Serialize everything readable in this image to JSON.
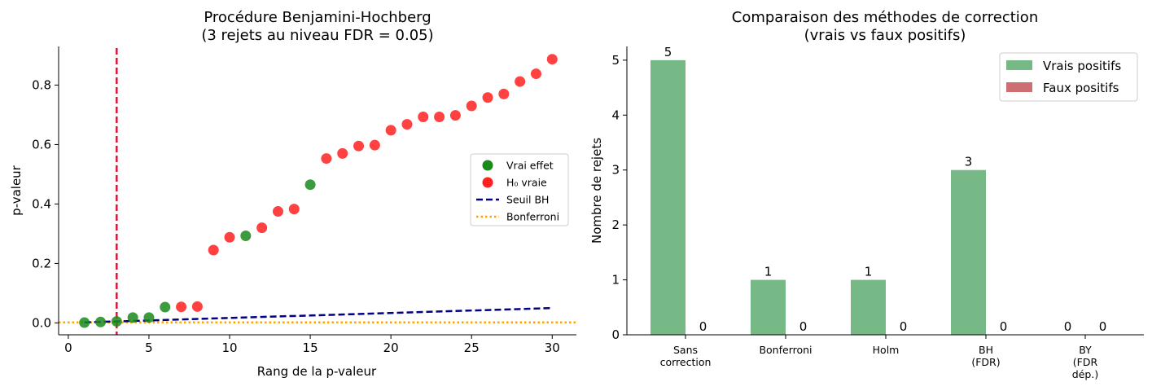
{
  "chart_data": [
    {
      "type": "scatter",
      "title_line1": "Procédure Benjamini-Hochberg",
      "title_line2": "(3 rejets au niveau FDR = 0.05)",
      "xlabel": "Rang de la p-valeur",
      "ylabel": "p-valeur",
      "xlim": [
        -0.6,
        31.5
      ],
      "ylim": [
        -0.04,
        0.93
      ],
      "xticks": [
        0,
        5,
        10,
        15,
        20,
        25,
        30
      ],
      "xtick_labels": [
        "0",
        "5",
        "10",
        "15",
        "20",
        "25",
        "30"
      ],
      "yticks": [
        0.0,
        0.2,
        0.4,
        0.6,
        0.8
      ],
      "ytick_labels": [
        "0.0",
        "0.2",
        "0.4",
        "0.6",
        "0.8"
      ],
      "points": [
        {
          "rank": 1,
          "p": 0.001,
          "group": "vrai"
        },
        {
          "rank": 2,
          "p": 0.003,
          "group": "vrai"
        },
        {
          "rank": 3,
          "p": 0.005,
          "group": "vrai"
        },
        {
          "rank": 4,
          "p": 0.018,
          "group": "vrai"
        },
        {
          "rank": 5,
          "p": 0.018,
          "group": "vrai"
        },
        {
          "rank": 6,
          "p": 0.053,
          "group": "vrai"
        },
        {
          "rank": 7,
          "p": 0.054,
          "group": "h0"
        },
        {
          "rank": 8,
          "p": 0.055,
          "group": "h0"
        },
        {
          "rank": 9,
          "p": 0.245,
          "group": "h0"
        },
        {
          "rank": 10,
          "p": 0.288,
          "group": "h0"
        },
        {
          "rank": 11,
          "p": 0.293,
          "group": "vrai"
        },
        {
          "rank": 12,
          "p": 0.32,
          "group": "h0"
        },
        {
          "rank": 13,
          "p": 0.375,
          "group": "h0"
        },
        {
          "rank": 14,
          "p": 0.383,
          "group": "h0"
        },
        {
          "rank": 15,
          "p": 0.465,
          "group": "vrai"
        },
        {
          "rank": 16,
          "p": 0.553,
          "group": "h0"
        },
        {
          "rank": 17,
          "p": 0.57,
          "group": "h0"
        },
        {
          "rank": 18,
          "p": 0.595,
          "group": "h0"
        },
        {
          "rank": 19,
          "p": 0.598,
          "group": "h0"
        },
        {
          "rank": 20,
          "p": 0.648,
          "group": "h0"
        },
        {
          "rank": 21,
          "p": 0.668,
          "group": "h0"
        },
        {
          "rank": 22,
          "p": 0.693,
          "group": "h0"
        },
        {
          "rank": 23,
          "p": 0.693,
          "group": "h0"
        },
        {
          "rank": 24,
          "p": 0.698,
          "group": "h0"
        },
        {
          "rank": 25,
          "p": 0.73,
          "group": "h0"
        },
        {
          "rank": 26,
          "p": 0.758,
          "group": "h0"
        },
        {
          "rank": 27,
          "p": 0.77,
          "group": "h0"
        },
        {
          "rank": 28,
          "p": 0.812,
          "group": "h0"
        },
        {
          "rank": 29,
          "p": 0.838,
          "group": "h0"
        },
        {
          "rank": 30,
          "p": 0.887,
          "group": "h0"
        }
      ],
      "bh_line": {
        "from": [
          1,
          0.00167
        ],
        "to": [
          30,
          0.05
        ]
      },
      "bonferroni_level": 0.00167,
      "cutoff_rank": 3,
      "legend": [
        "Vrai effet",
        "H₀ vraie",
        "Seuil BH",
        "Bonferroni"
      ],
      "legend_position": "center-right",
      "colors": {
        "vrai": "#1a8a1a",
        "h0": "#ff2020",
        "bh": "#000080",
        "bonferroni": "#ffa500",
        "cutoff": "#dc143c"
      }
    },
    {
      "type": "bar",
      "title_line1": "Comparaison des méthodes de correction",
      "title_line2": "(vrais vs faux positifs)",
      "ylabel": "Nombre de rejets",
      "categories": [
        [
          "Sans",
          "correction"
        ],
        [
          "Bonferroni"
        ],
        [
          "Holm"
        ],
        [
          "BH",
          "(FDR)"
        ],
        [
          "BY",
          "(FDR",
          "dép.)"
        ]
      ],
      "series": [
        {
          "name": "Vrais positifs",
          "values": [
            5,
            1,
            1,
            3,
            0
          ],
          "color": "#76b886"
        },
        {
          "name": "Faux positifs",
          "values": [
            0,
            0,
            0,
            0,
            0
          ],
          "color": "#cd6e72"
        }
      ],
      "ylim": [
        0,
        5.25
      ],
      "yticks": [
        0,
        1,
        2,
        3,
        4,
        5
      ],
      "ytick_labels": [
        "0",
        "1",
        "2",
        "3",
        "4",
        "5"
      ],
      "legend_position": "top-right"
    }
  ]
}
